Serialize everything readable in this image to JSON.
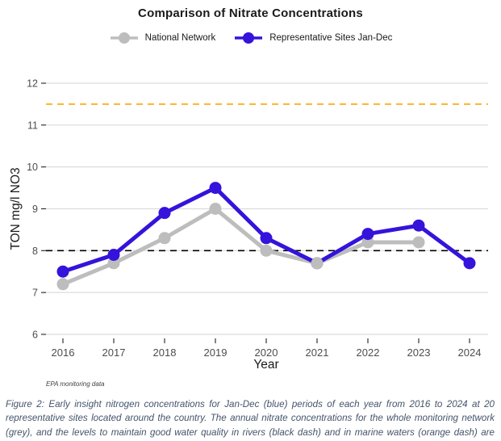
{
  "header": {
    "title": "Comparison of Nitrate Concentrations"
  },
  "legend": {
    "items": [
      {
        "label": "National Network",
        "color": "#BDBDBD"
      },
      {
        "label": "Representative Sites Jan-Dec",
        "color": "#3513DB"
      }
    ]
  },
  "chart_data": {
    "type": "line",
    "title": "Comparison of Nitrate Concentrations",
    "x": [
      2016,
      2017,
      2018,
      2019,
      2020,
      2021,
      2022,
      2023,
      2024
    ],
    "xlabel": "Year",
    "ylabel": "TON mg/l NO3",
    "ylim": [
      6,
      12
    ],
    "yticks": [
      6,
      7,
      8,
      9,
      10,
      11,
      12
    ],
    "grid": "horizontal-only",
    "legend_position": "top",
    "series": [
      {
        "name": "National Network",
        "color": "#BDBDBD",
        "values": [
          7.2,
          7.7,
          8.3,
          9.0,
          8.0,
          7.7,
          8.2,
          8.2,
          null
        ]
      },
      {
        "name": "Representative Sites Jan-Dec",
        "color": "#3513DB",
        "values": [
          7.5,
          7.9,
          8.9,
          9.5,
          8.3,
          7.7,
          8.4,
          8.6,
          7.7
        ]
      }
    ],
    "reference_lines": [
      {
        "label": "good water quality level in rivers (black dash)",
        "value": 8,
        "color": "#000000",
        "style": "dashed"
      },
      {
        "label": "good water quality level in marine waters (orange dash)",
        "value": 11.5,
        "color": "#FFA500",
        "style": "dashed"
      }
    ],
    "source_note": "EPA monitoring data"
  },
  "caption": {
    "text": "Figure 2: Early insight nitrogen concentrations for Jan-Dec (blue) periods of each year from 2016 to 2024 at 20 representative sites located around the country. The annual nitrate concentrations for the whole monitoring network (grey), and the levels to maintain good water quality in rivers (black dash) and in marine waters (orange dash) are also shown."
  }
}
